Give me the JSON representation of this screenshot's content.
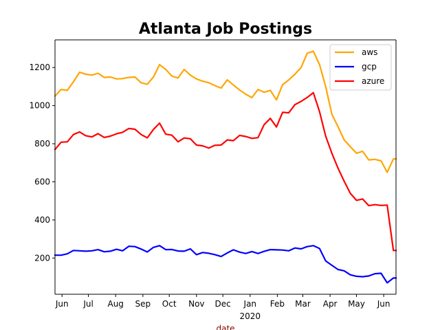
{
  "chart_data": {
    "type": "line",
    "title": "Atlanta Job Postings",
    "xlabel": "date",
    "ylabel": "",
    "xlabel_color": "#8b0000",
    "x_start": "2019-06-01",
    "x_end": "2020-06-23",
    "ylim": [
      10,
      1345
    ],
    "y_ticks": [
      200,
      400,
      600,
      800,
      1000,
      1200
    ],
    "x_ticks": [
      {
        "date": "2019-06-09",
        "label": "Jun",
        "sublabel": ""
      },
      {
        "date": "2019-07-09",
        "label": "Jul",
        "sublabel": ""
      },
      {
        "date": "2019-08-09",
        "label": "Aug",
        "sublabel": ""
      },
      {
        "date": "2019-09-09",
        "label": "Sep",
        "sublabel": ""
      },
      {
        "date": "2019-10-09",
        "label": "Oct",
        "sublabel": ""
      },
      {
        "date": "2019-11-09",
        "label": "Nov",
        "sublabel": ""
      },
      {
        "date": "2019-12-09",
        "label": "Dec",
        "sublabel": ""
      },
      {
        "date": "2020-01-09",
        "label": "Jan",
        "sublabel": "2020"
      },
      {
        "date": "2020-02-09",
        "label": "Feb",
        "sublabel": ""
      },
      {
        "date": "2020-03-09",
        "label": "Mar",
        "sublabel": ""
      },
      {
        "date": "2020-04-09",
        "label": "Apr",
        "sublabel": ""
      },
      {
        "date": "2020-05-09",
        "label": "May",
        "sublabel": ""
      },
      {
        "date": "2020-06-09",
        "label": "Jun",
        "sublabel": ""
      }
    ],
    "legend_position": "top-right",
    "grid": false,
    "x": [
      "2019-06-01",
      "2019-06-08",
      "2019-06-15",
      "2019-06-22",
      "2019-06-29",
      "2019-07-06",
      "2019-07-13",
      "2019-07-20",
      "2019-07-27",
      "2019-08-03",
      "2019-08-10",
      "2019-08-17",
      "2019-08-24",
      "2019-08-31",
      "2019-09-07",
      "2019-09-14",
      "2019-09-21",
      "2019-09-28",
      "2019-10-05",
      "2019-10-12",
      "2019-10-19",
      "2019-10-26",
      "2019-11-02",
      "2019-11-09",
      "2019-11-16",
      "2019-11-23",
      "2019-11-30",
      "2019-12-07",
      "2019-12-14",
      "2019-12-21",
      "2019-12-28",
      "2020-01-04",
      "2020-01-11",
      "2020-01-18",
      "2020-01-25",
      "2020-02-01",
      "2020-02-08",
      "2020-02-15",
      "2020-02-22",
      "2020-02-29",
      "2020-03-07",
      "2020-03-14",
      "2020-03-21",
      "2020-03-28",
      "2020-04-04",
      "2020-04-11",
      "2020-04-18",
      "2020-04-25",
      "2020-05-02",
      "2020-05-09",
      "2020-05-16",
      "2020-05-23",
      "2020-05-30",
      "2020-06-06",
      "2020-06-13",
      "2020-06-20",
      "2020-06-23"
    ],
    "series": [
      {
        "name": "aws",
        "color": "#ffa500",
        "values": [
          1050,
          1085,
          1080,
          1125,
          1175,
          1165,
          1160,
          1170,
          1148,
          1150,
          1140,
          1142,
          1148,
          1150,
          1120,
          1112,
          1150,
          1215,
          1190,
          1155,
          1145,
          1190,
          1160,
          1140,
          1128,
          1120,
          1105,
          1092,
          1135,
          1108,
          1082,
          1060,
          1042,
          1085,
          1070,
          1080,
          1030,
          1110,
          1135,
          1165,
          1200,
          1275,
          1285,
          1215,
          1100,
          955,
          890,
          820,
          785,
          750,
          760,
          715,
          718,
          710,
          650,
          720,
          720
        ]
      },
      {
        "name": "gcp",
        "color": "#0000ff",
        "values": [
          215,
          215,
          222,
          240,
          238,
          236,
          238,
          244,
          233,
          236,
          246,
          238,
          262,
          260,
          247,
          232,
          256,
          265,
          244,
          245,
          237,
          236,
          248,
          218,
          229,
          225,
          218,
          208,
          227,
          243,
          231,
          224,
          234,
          224,
          235,
          244,
          243,
          242,
          238,
          253,
          248,
          260,
          265,
          250,
          185,
          162,
          140,
          133,
          112,
          104,
          102,
          106,
          118,
          120,
          70,
          95,
          95
        ]
      },
      {
        "name": "azure",
        "color": "#ff0000",
        "values": [
          770,
          808,
          810,
          848,
          862,
          842,
          836,
          853,
          833,
          840,
          852,
          860,
          880,
          876,
          848,
          831,
          875,
          908,
          850,
          845,
          810,
          830,
          826,
          793,
          789,
          777,
          792,
          793,
          820,
          816,
          844,
          838,
          828,
          832,
          900,
          933,
          888,
          965,
          962,
          1005,
          1022,
          1043,
          1068,
          968,
          840,
          750,
          672,
          603,
          540,
          503,
          510,
          475,
          480,
          476,
          478,
          240,
          240
        ]
      }
    ]
  }
}
